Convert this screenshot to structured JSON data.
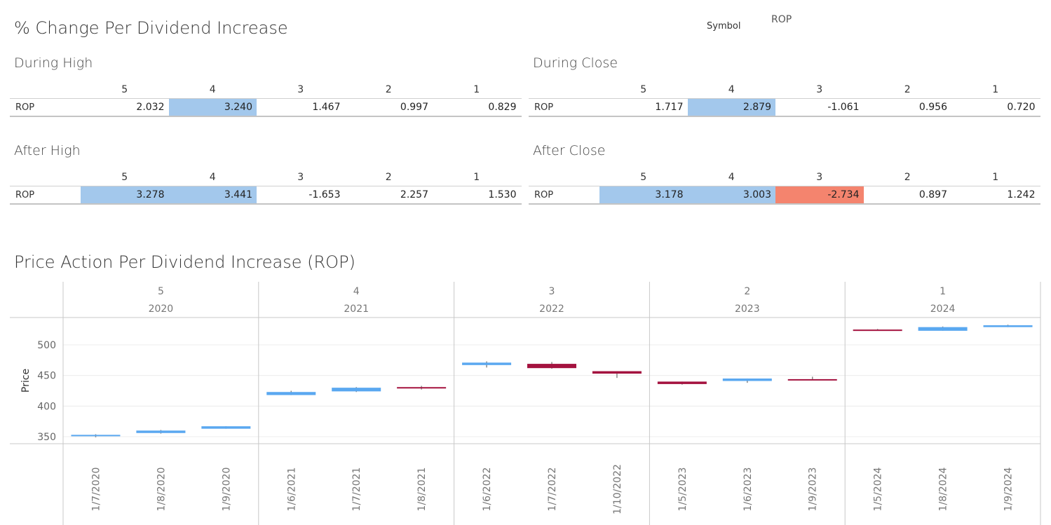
{
  "header": {
    "title": "% Change Per Dividend Increase",
    "symbol_label": "Symbol",
    "symbol_value": "ROP"
  },
  "tables": {
    "columns": [
      "5",
      "4",
      "3",
      "2",
      "1"
    ],
    "row_label": "ROP",
    "during_high": {
      "title": "During High",
      "values": [
        "2.032",
        "3.240",
        "1.467",
        "0.997",
        "0.829"
      ],
      "highlight": [
        "none",
        "blue",
        "none",
        "none",
        "none"
      ]
    },
    "during_close": {
      "title": "During Close",
      "values": [
        "1.717",
        "2.879",
        "-1.061",
        "0.956",
        "0.720"
      ],
      "highlight": [
        "none",
        "blue",
        "none",
        "none",
        "none"
      ]
    },
    "after_high": {
      "title": "After High",
      "values": [
        "3.278",
        "3.441",
        "-1.653",
        "2.257",
        "1.530"
      ],
      "highlight": [
        "blue",
        "blue",
        "none",
        "none",
        "none"
      ]
    },
    "after_close": {
      "title": "After Close",
      "values": [
        "3.178",
        "3.003",
        "-2.734",
        "0.897",
        "1.242"
      ],
      "highlight": [
        "blue",
        "blue",
        "red",
        "none",
        "none"
      ]
    }
  },
  "colors": {
    "highlight_blue": "#a3c8ec",
    "highlight_red": "#f4846e",
    "candle_up": "#5aa8f0",
    "candle_down": "#a4123f",
    "wick": "#888888"
  },
  "chart_data": {
    "type": "candlestick",
    "title": "Price Action Per Dividend Increase (ROP)",
    "ylabel": "Price",
    "ylim": [
      340,
      540
    ],
    "yticks": [
      350,
      400,
      450,
      500
    ],
    "grid": true,
    "panels": [
      {
        "number": "5",
        "year": "2020",
        "candles": [
          {
            "date": "1/7/2020",
            "open": 352,
            "close": 353,
            "high": 354,
            "low": 349
          },
          {
            "date": "1/8/2020",
            "open": 356,
            "close": 360,
            "high": 361,
            "low": 355
          },
          {
            "date": "1/9/2020",
            "open": 363,
            "close": 367,
            "high": 367,
            "low": 363
          }
        ]
      },
      {
        "number": "4",
        "year": "2021",
        "candles": [
          {
            "date": "1/6/2021",
            "open": 418,
            "close": 423,
            "high": 425,
            "low": 418
          },
          {
            "date": "1/7/2021",
            "open": 424,
            "close": 430,
            "high": 431,
            "low": 423
          },
          {
            "date": "1/8/2021",
            "open": 431,
            "close": 430,
            "high": 433,
            "low": 427
          }
        ]
      },
      {
        "number": "3",
        "year": "2022",
        "candles": [
          {
            "date": "1/6/2022",
            "open": 467,
            "close": 471,
            "high": 473,
            "low": 463
          },
          {
            "date": "1/7/2022",
            "open": 469,
            "close": 462,
            "high": 472,
            "low": 461
          },
          {
            "date": "1/10/2022",
            "open": 457,
            "close": 453,
            "high": 457,
            "low": 446
          }
        ]
      },
      {
        "number": "2",
        "year": "2023",
        "candles": [
          {
            "date": "1/5/2023",
            "open": 440,
            "close": 436,
            "high": 440,
            "low": 435
          },
          {
            "date": "1/6/2023",
            "open": 441,
            "close": 445,
            "high": 445,
            "low": 438
          },
          {
            "date": "1/9/2023",
            "open": 444,
            "close": 443,
            "high": 448,
            "low": 443
          }
        ]
      },
      {
        "number": "1",
        "year": "2024",
        "candles": [
          {
            "date": "1/5/2024",
            "open": 525,
            "close": 524,
            "high": 526,
            "low": 523
          },
          {
            "date": "1/8/2024",
            "open": 523,
            "close": 529,
            "high": 530,
            "low": 523
          },
          {
            "date": "1/9/2024",
            "open": 529,
            "close": 532,
            "high": 533,
            "low": 529
          }
        ]
      }
    ]
  }
}
